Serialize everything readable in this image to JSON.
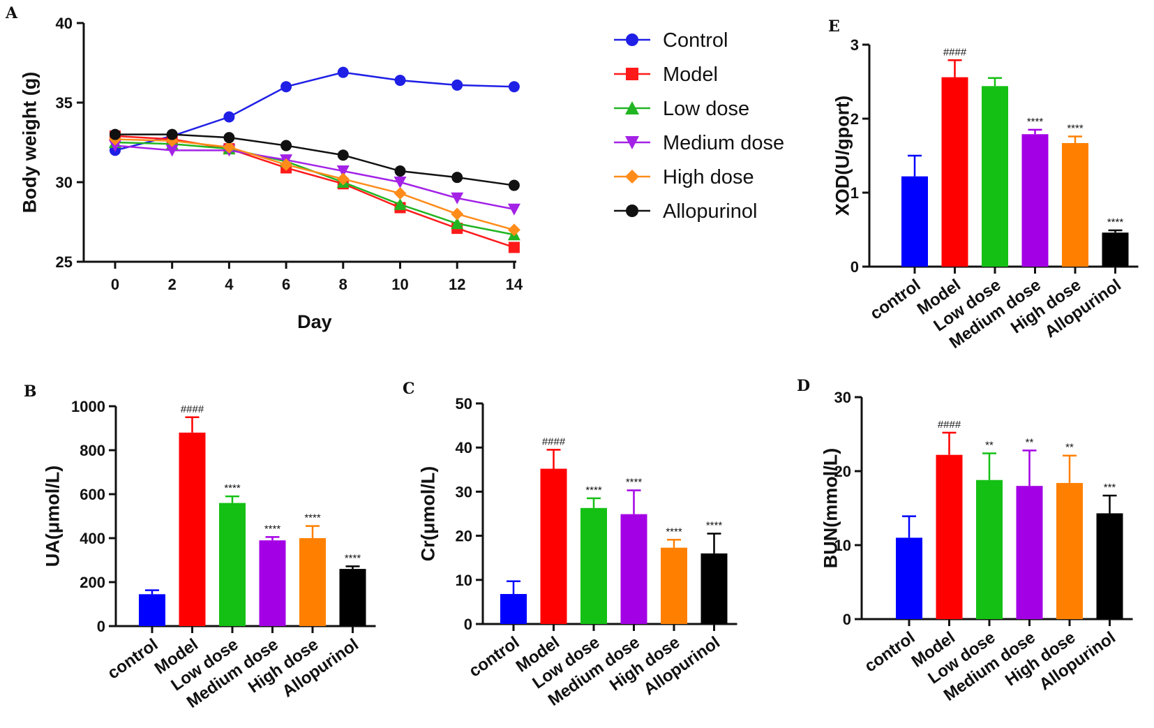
{
  "chart_data": [
    {
      "id": "A",
      "type": "line",
      "panel_label": "A",
      "xlabel": "Day",
      "ylabel": "Body weight (g)",
      "x": [
        0,
        2,
        4,
        6,
        8,
        10,
        12,
        14
      ],
      "x_ticks": [
        "0",
        "2",
        "4",
        "6",
        "8",
        "10",
        "12",
        "14"
      ],
      "ylim": [
        25,
        40
      ],
      "y_ticks": [
        "25",
        "30",
        "35",
        "40"
      ],
      "series": [
        {
          "name": "Control",
          "color": "#1f1fe6",
          "marker": "circle",
          "values": [
            32.0,
            32.9,
            34.1,
            36.0,
            36.9,
            36.4,
            36.1,
            36.0
          ]
        },
        {
          "name": "Model",
          "color": "#ff1a1a",
          "marker": "square",
          "values": [
            32.9,
            32.7,
            32.1,
            30.9,
            29.9,
            28.4,
            27.1,
            25.9
          ]
        },
        {
          "name": "Low dose",
          "color": "#22b522",
          "marker": "triangle-up",
          "values": [
            32.5,
            32.4,
            32.1,
            31.3,
            30.0,
            28.6,
            27.4,
            26.7
          ]
        },
        {
          "name": "Medium dose",
          "color": "#a322e6",
          "marker": "triangle-down",
          "values": [
            32.3,
            32.0,
            32.0,
            31.4,
            30.7,
            30.0,
            29.0,
            28.3
          ]
        },
        {
          "name": "High dose",
          "color": "#ff8c1a",
          "marker": "diamond",
          "values": [
            32.7,
            32.6,
            32.2,
            31.1,
            30.2,
            29.3,
            28.0,
            27.0
          ]
        },
        {
          "name": "Allopurinol",
          "color": "#111111",
          "marker": "circle",
          "values": [
            33.0,
            33.0,
            32.8,
            32.3,
            31.7,
            30.7,
            30.3,
            29.8
          ]
        }
      ]
    },
    {
      "id": "B",
      "type": "bar",
      "panel_label": "B",
      "ylabel": "UA(μmol/L)",
      "ylim": [
        0,
        1000
      ],
      "y_ticks": [
        "0",
        "200",
        "400",
        "600",
        "800",
        "1000"
      ],
      "categories": [
        "control",
        "Model",
        "Low dose",
        "Medium dose",
        "High dose",
        "Allopurinol"
      ],
      "values": [
        145,
        880,
        560,
        390,
        400,
        260
      ],
      "errors": [
        18,
        70,
        30,
        15,
        55,
        12
      ],
      "significance": [
        "",
        "####",
        "****",
        "****",
        "****",
        "****"
      ]
    },
    {
      "id": "C",
      "type": "bar",
      "panel_label": "C",
      "ylabel": "Cr(μmol/L)",
      "ylim": [
        0,
        50
      ],
      "y_ticks": [
        "0",
        "10",
        "20",
        "30",
        "40",
        "50"
      ],
      "categories": [
        "control",
        "Model",
        "Low dose",
        "Medium dose",
        "High dose",
        "Allopurinol"
      ],
      "values": [
        6.8,
        35.2,
        26.3,
        24.9,
        17.3,
        16.0
      ],
      "errors": [
        2.9,
        4.3,
        2.2,
        5.4,
        1.8,
        4.5
      ],
      "significance": [
        "",
        "####",
        "****",
        "****",
        "****",
        "****"
      ]
    },
    {
      "id": "D",
      "type": "bar",
      "panel_label": "D",
      "ylabel": "BUN(mmol/L)",
      "ylim": [
        0,
        30
      ],
      "y_ticks": [
        "0",
        "10",
        "20",
        "30"
      ],
      "categories": [
        "control",
        "Model",
        "Low dose",
        "Medium dose",
        "High dose",
        "Allopurinol"
      ],
      "values": [
        11.0,
        22.2,
        18.8,
        18.0,
        18.4,
        14.3
      ],
      "errors": [
        2.9,
        3.0,
        3.6,
        4.8,
        3.7,
        2.4
      ],
      "significance": [
        "",
        "####",
        "**",
        "**",
        "**",
        "***"
      ]
    },
    {
      "id": "E",
      "type": "bar",
      "panel_label": "E",
      "ylabel": "XOD(U/gport)",
      "ylim": [
        0,
        3
      ],
      "y_ticks": [
        "0",
        "1",
        "2",
        "3"
      ],
      "categories": [
        "control",
        "Model",
        "Low dose",
        "Medium dose",
        "High dose",
        "Allopurinol"
      ],
      "values": [
        1.22,
        2.56,
        2.44,
        1.79,
        1.67,
        0.46
      ],
      "errors": [
        0.28,
        0.23,
        0.11,
        0.06,
        0.09,
        0.03
      ],
      "significance": [
        "",
        "####",
        "",
        "****",
        "****",
        "****"
      ]
    }
  ],
  "bar_colors": [
    "#0000ff",
    "#ff0000",
    "#14c014",
    "#a400e6",
    "#ff8000",
    "#000000"
  ]
}
